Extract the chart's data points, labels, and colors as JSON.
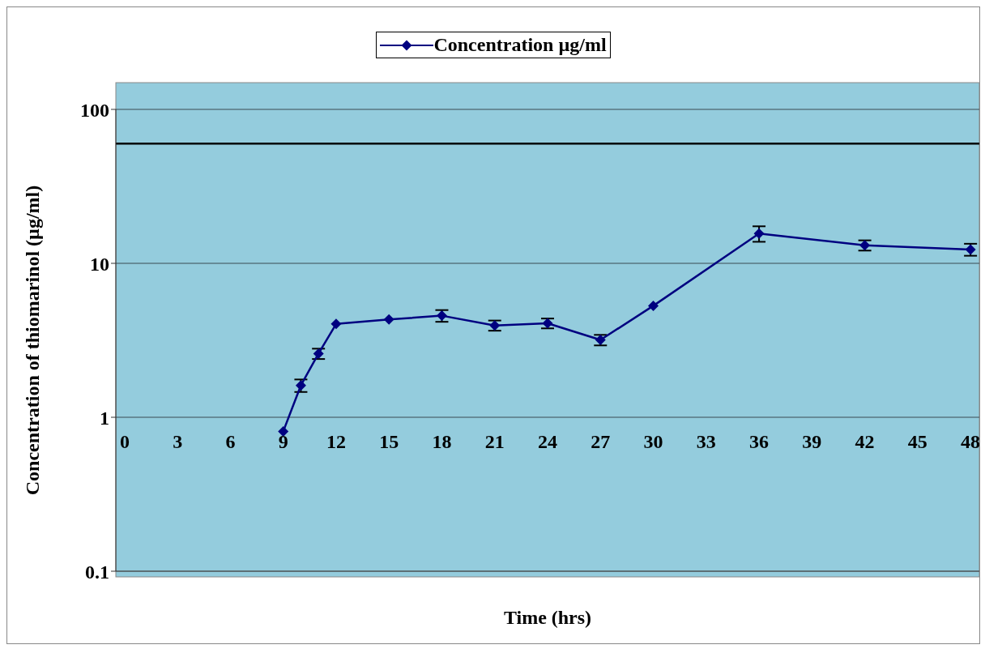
{
  "chart_data": {
    "type": "line",
    "xlabel": "Time (hrs)",
    "ylabel": "Concentration of thiomarinol (µg/ml)",
    "x": [
      9,
      10,
      11,
      12,
      15,
      18,
      21,
      24,
      27,
      30,
      36,
      42,
      48
    ],
    "series": [
      {
        "name": "Concentration µg/ml",
        "color": "#000080",
        "values": [
          0.81,
          1.61,
          2.59,
          4.04,
          4.32,
          4.57,
          3.95,
          4.08,
          3.18,
          5.3,
          15.6,
          13.1,
          12.3
        ],
        "errors": [
          null,
          0.15,
          0.2,
          null,
          null,
          0.4,
          0.3,
          0.3,
          0.25,
          null,
          1.8,
          1.0,
          1.1
        ]
      }
    ],
    "log": "y",
    "ylim": [
      0.1,
      100
    ],
    "yticks": [
      0.1,
      1,
      10,
      100
    ],
    "xlim": [
      -0.5,
      48.5
    ],
    "xticks": [
      0,
      3,
      6,
      9,
      12,
      15,
      18,
      21,
      24,
      27,
      30,
      33,
      36,
      39,
      42,
      45,
      48
    ],
    "ref_lines": [
      {
        "axis": "y",
        "value": 60,
        "color": "#000000"
      }
    ],
    "grid": "y",
    "legend": "top",
    "marker": "diamond",
    "line_style": "solid"
  }
}
